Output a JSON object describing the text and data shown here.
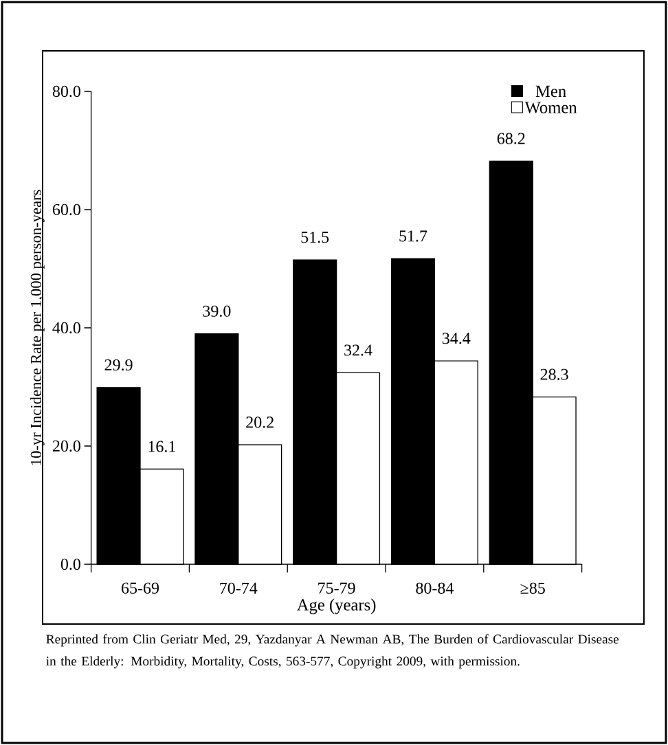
{
  "chart_data": {
    "type": "bar",
    "xlabel": "Age (years)",
    "ylabel": "10-yr Incidence Rate per 1,000 person-years",
    "categories": [
      "65-69",
      "70-74",
      "75-79",
      "80-84",
      "≥85"
    ],
    "series": [
      {
        "name": "Men",
        "color": "#000000",
        "values": [
          29.9,
          39.0,
          51.5,
          51.7,
          68.2
        ],
        "value_labels": [
          "29.9",
          "39.0",
          "51.5",
          "51.7",
          "68.2"
        ]
      },
      {
        "name": "Women",
        "color": "#ffffff",
        "values": [
          16.1,
          20.2,
          32.4,
          34.4,
          28.3
        ],
        "value_labels": [
          "16.1",
          "20.2",
          "32.4",
          "34.4",
          "28.3"
        ]
      }
    ],
    "ylim": [
      0,
      80
    ],
    "yticks": [
      {
        "value": 0,
        "label": "0.0"
      },
      {
        "value": 20,
        "label": "20.0"
      },
      {
        "value": 40,
        "label": "40.0"
      },
      {
        "value": 60,
        "label": "60.0"
      },
      {
        "value": 80,
        "label": "80.0"
      }
    ],
    "legend": "top right",
    "grid": false,
    "annotations": [
      "Reprinted from Clin Geriatr Med, 29, Yazdanyar A Newman AB, The Burden of Cardiovascular Disease in the Elderly: Morbidity, Mortality, Costs, 563-577, Copyright 2009, with permission."
    ]
  }
}
